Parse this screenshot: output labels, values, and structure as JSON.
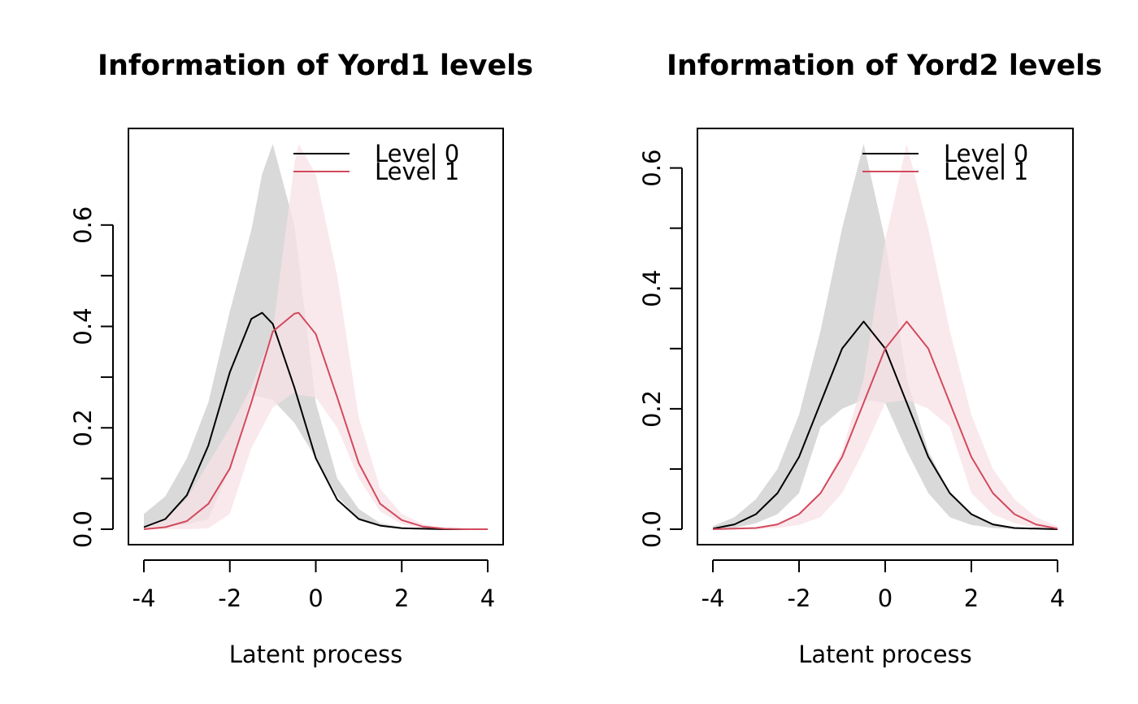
{
  "chart_data": [
    {
      "type": "line",
      "title": "Information of Yord1 levels",
      "xlabel": "Latent process",
      "ylabel": "",
      "xlim": [
        -4,
        4
      ],
      "ylim": [
        0,
        0.76
      ],
      "xticks": [
        -4,
        -2,
        0,
        2,
        4
      ],
      "xtick_labels": [
        "-4",
        "-2",
        "0",
        "2",
        "4"
      ],
      "yticks": [
        0.0,
        0.1,
        0.2,
        0.3,
        0.4,
        0.5,
        0.6
      ],
      "ytick_labels": [
        "0.0",
        "",
        "0.2",
        "",
        "0.4",
        "",
        "0.6"
      ],
      "legend": {
        "position": "top-right",
        "entries": [
          "Level 0",
          "Level 1"
        ]
      },
      "series": [
        {
          "name": "Level 0",
          "color": "#000000",
          "band_color": "#d9d9d9",
          "x": [
            -4,
            -3.5,
            -3,
            -2.5,
            -2,
            -1.5,
            -1.25,
            -1,
            -0.5,
            0,
            0.5,
            1,
            1.5,
            2,
            2.5,
            3,
            3.5,
            4
          ],
          "values": [
            0.004,
            0.02,
            0.067,
            0.165,
            0.31,
            0.415,
            0.427,
            0.405,
            0.28,
            0.14,
            0.058,
            0.02,
            0.007,
            0.002,
            0.001,
            0.0,
            0.0,
            0.0
          ],
          "lower": [
            0.0,
            0.005,
            0.01,
            0.02,
            0.12,
            0.265,
            0.26,
            0.255,
            0.21,
            0.14,
            0.065,
            0.02,
            0.007,
            0.002,
            0.001,
            0.0,
            0.0,
            0.0
          ],
          "upper": [
            0.03,
            0.065,
            0.14,
            0.25,
            0.43,
            0.59,
            0.7,
            0.76,
            0.6,
            0.25,
            0.1,
            0.04,
            0.012,
            0.004,
            0.001,
            0.0,
            0.0,
            0.0
          ]
        },
        {
          "name": "Level 1",
          "color": "#d24a5e",
          "band_color": "#f8e1e5",
          "x": [
            -4,
            -3.5,
            -3,
            -2.5,
            -2,
            -1.5,
            -1,
            -0.5,
            -0.4,
            0,
            0.5,
            1,
            1.5,
            2,
            2.5,
            3,
            3.5,
            4
          ],
          "values": [
            0.0,
            0.004,
            0.016,
            0.05,
            0.12,
            0.25,
            0.39,
            0.425,
            0.427,
            0.385,
            0.26,
            0.13,
            0.05,
            0.018,
            0.005,
            0.001,
            0.0,
            0.0
          ],
          "lower": [
            0.0,
            0.0,
            0.0,
            0.002,
            0.03,
            0.16,
            0.24,
            0.27,
            0.265,
            0.26,
            0.2,
            0.1,
            0.035,
            0.01,
            0.002,
            0.0,
            0.0,
            0.0
          ],
          "upper": [
            0.004,
            0.02,
            0.06,
            0.13,
            0.2,
            0.28,
            0.39,
            0.72,
            0.76,
            0.7,
            0.5,
            0.22,
            0.08,
            0.03,
            0.01,
            0.002,
            0.0,
            0.0
          ]
        }
      ]
    },
    {
      "type": "line",
      "title": "Information of Yord2 levels",
      "xlabel": "Latent process",
      "ylabel": "",
      "xlim": [
        -4,
        4
      ],
      "ylim": [
        0,
        0.64
      ],
      "xticks": [
        -4,
        -2,
        0,
        2,
        4
      ],
      "xtick_labels": [
        "-4",
        "-2",
        "0",
        "2",
        "4"
      ],
      "yticks": [
        0.0,
        0.1,
        0.2,
        0.3,
        0.4,
        0.5,
        0.6
      ],
      "ytick_labels": [
        "0.0",
        "",
        "0.2",
        "",
        "0.4",
        "",
        "0.6"
      ],
      "legend": {
        "position": "top-right",
        "entries": [
          "Level 0",
          "Level 1"
        ]
      },
      "series": [
        {
          "name": "Level 0",
          "color": "#000000",
          "band_color": "#d9d9d9",
          "x": [
            -4,
            -3.5,
            -3,
            -2.5,
            -2,
            -1.5,
            -1,
            -0.5,
            0,
            0.5,
            1,
            1.5,
            2,
            2.5,
            3,
            3.5,
            4
          ],
          "values": [
            0.001,
            0.008,
            0.025,
            0.06,
            0.12,
            0.21,
            0.3,
            0.345,
            0.3,
            0.21,
            0.12,
            0.06,
            0.025,
            0.008,
            0.002,
            0.001,
            0.0
          ],
          "lower": [
            0.0,
            0.002,
            0.01,
            0.025,
            0.06,
            0.17,
            0.2,
            0.215,
            0.21,
            0.13,
            0.06,
            0.02,
            0.007,
            0.002,
            0.0,
            0.0,
            0.0
          ],
          "upper": [
            0.005,
            0.02,
            0.05,
            0.1,
            0.19,
            0.33,
            0.5,
            0.64,
            0.48,
            0.25,
            0.13,
            0.06,
            0.025,
            0.01,
            0.003,
            0.001,
            0.0
          ]
        },
        {
          "name": "Level 1",
          "color": "#d24a5e",
          "band_color": "#f8e1e5",
          "x": [
            -4,
            -3.5,
            -3,
            -2.5,
            -2,
            -1.5,
            -1,
            -0.5,
            0,
            0.5,
            1,
            1.5,
            2,
            2.5,
            3,
            3.5,
            4
          ],
          "values": [
            0.0,
            0.001,
            0.002,
            0.008,
            0.025,
            0.06,
            0.12,
            0.21,
            0.3,
            0.345,
            0.3,
            0.21,
            0.12,
            0.06,
            0.025,
            0.008,
            0.001
          ],
          "lower": [
            0.0,
            0.0,
            0.0,
            0.002,
            0.007,
            0.02,
            0.06,
            0.13,
            0.21,
            0.215,
            0.2,
            0.17,
            0.06,
            0.025,
            0.01,
            0.002,
            0.0
          ],
          "upper": [
            0.0,
            0.001,
            0.003,
            0.01,
            0.025,
            0.06,
            0.13,
            0.25,
            0.48,
            0.64,
            0.5,
            0.33,
            0.19,
            0.1,
            0.05,
            0.02,
            0.005
          ]
        }
      ]
    }
  ]
}
